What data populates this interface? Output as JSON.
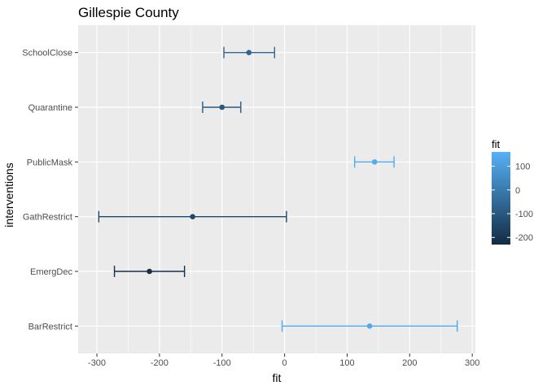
{
  "chart_data": {
    "type": "errorbar",
    "title": "Gillespie County",
    "xlabel": "fit",
    "ylabel": "interventions",
    "xlim": [
      -330,
      305
    ],
    "x_ticks": [
      -300,
      -200,
      -100,
      0,
      100,
      200,
      300
    ],
    "x_tick_labels": [
      "-300",
      "-200",
      "-100",
      "0",
      "100",
      "200",
      "300"
    ],
    "categories": [
      "SchoolClose",
      "Quarantine",
      "PublicMask",
      "GathRestrict",
      "EmergDec",
      "BarRestrict"
    ],
    "series": [
      {
        "values": [
          {
            "category": "SchoolClose",
            "fit": -57,
            "lower": -97,
            "upper": -16
          },
          {
            "category": "Quarantine",
            "fit": -100,
            "lower": -131,
            "upper": -70
          },
          {
            "category": "PublicMask",
            "fit": 144,
            "lower": 112,
            "upper": 175
          },
          {
            "category": "GathRestrict",
            "fit": -147,
            "lower": -297,
            "upper": 3
          },
          {
            "category": "EmergDec",
            "fit": -216,
            "lower": -272,
            "upper": -160
          },
          {
            "category": "BarRestrict",
            "fit": 136,
            "lower": -4,
            "upper": 276
          }
        ]
      }
    ],
    "grid": true,
    "legend": {
      "title": "fit",
      "position": "right",
      "ticks": [
        100,
        0,
        -100,
        -200
      ],
      "tick_labels": [
        "100",
        "0",
        "-100",
        "-200"
      ],
      "range": [
        -230,
        160
      ],
      "color_low": "#132b43",
      "color_high": "#56b1f7"
    },
    "panel_background": "#ebebeb"
  }
}
